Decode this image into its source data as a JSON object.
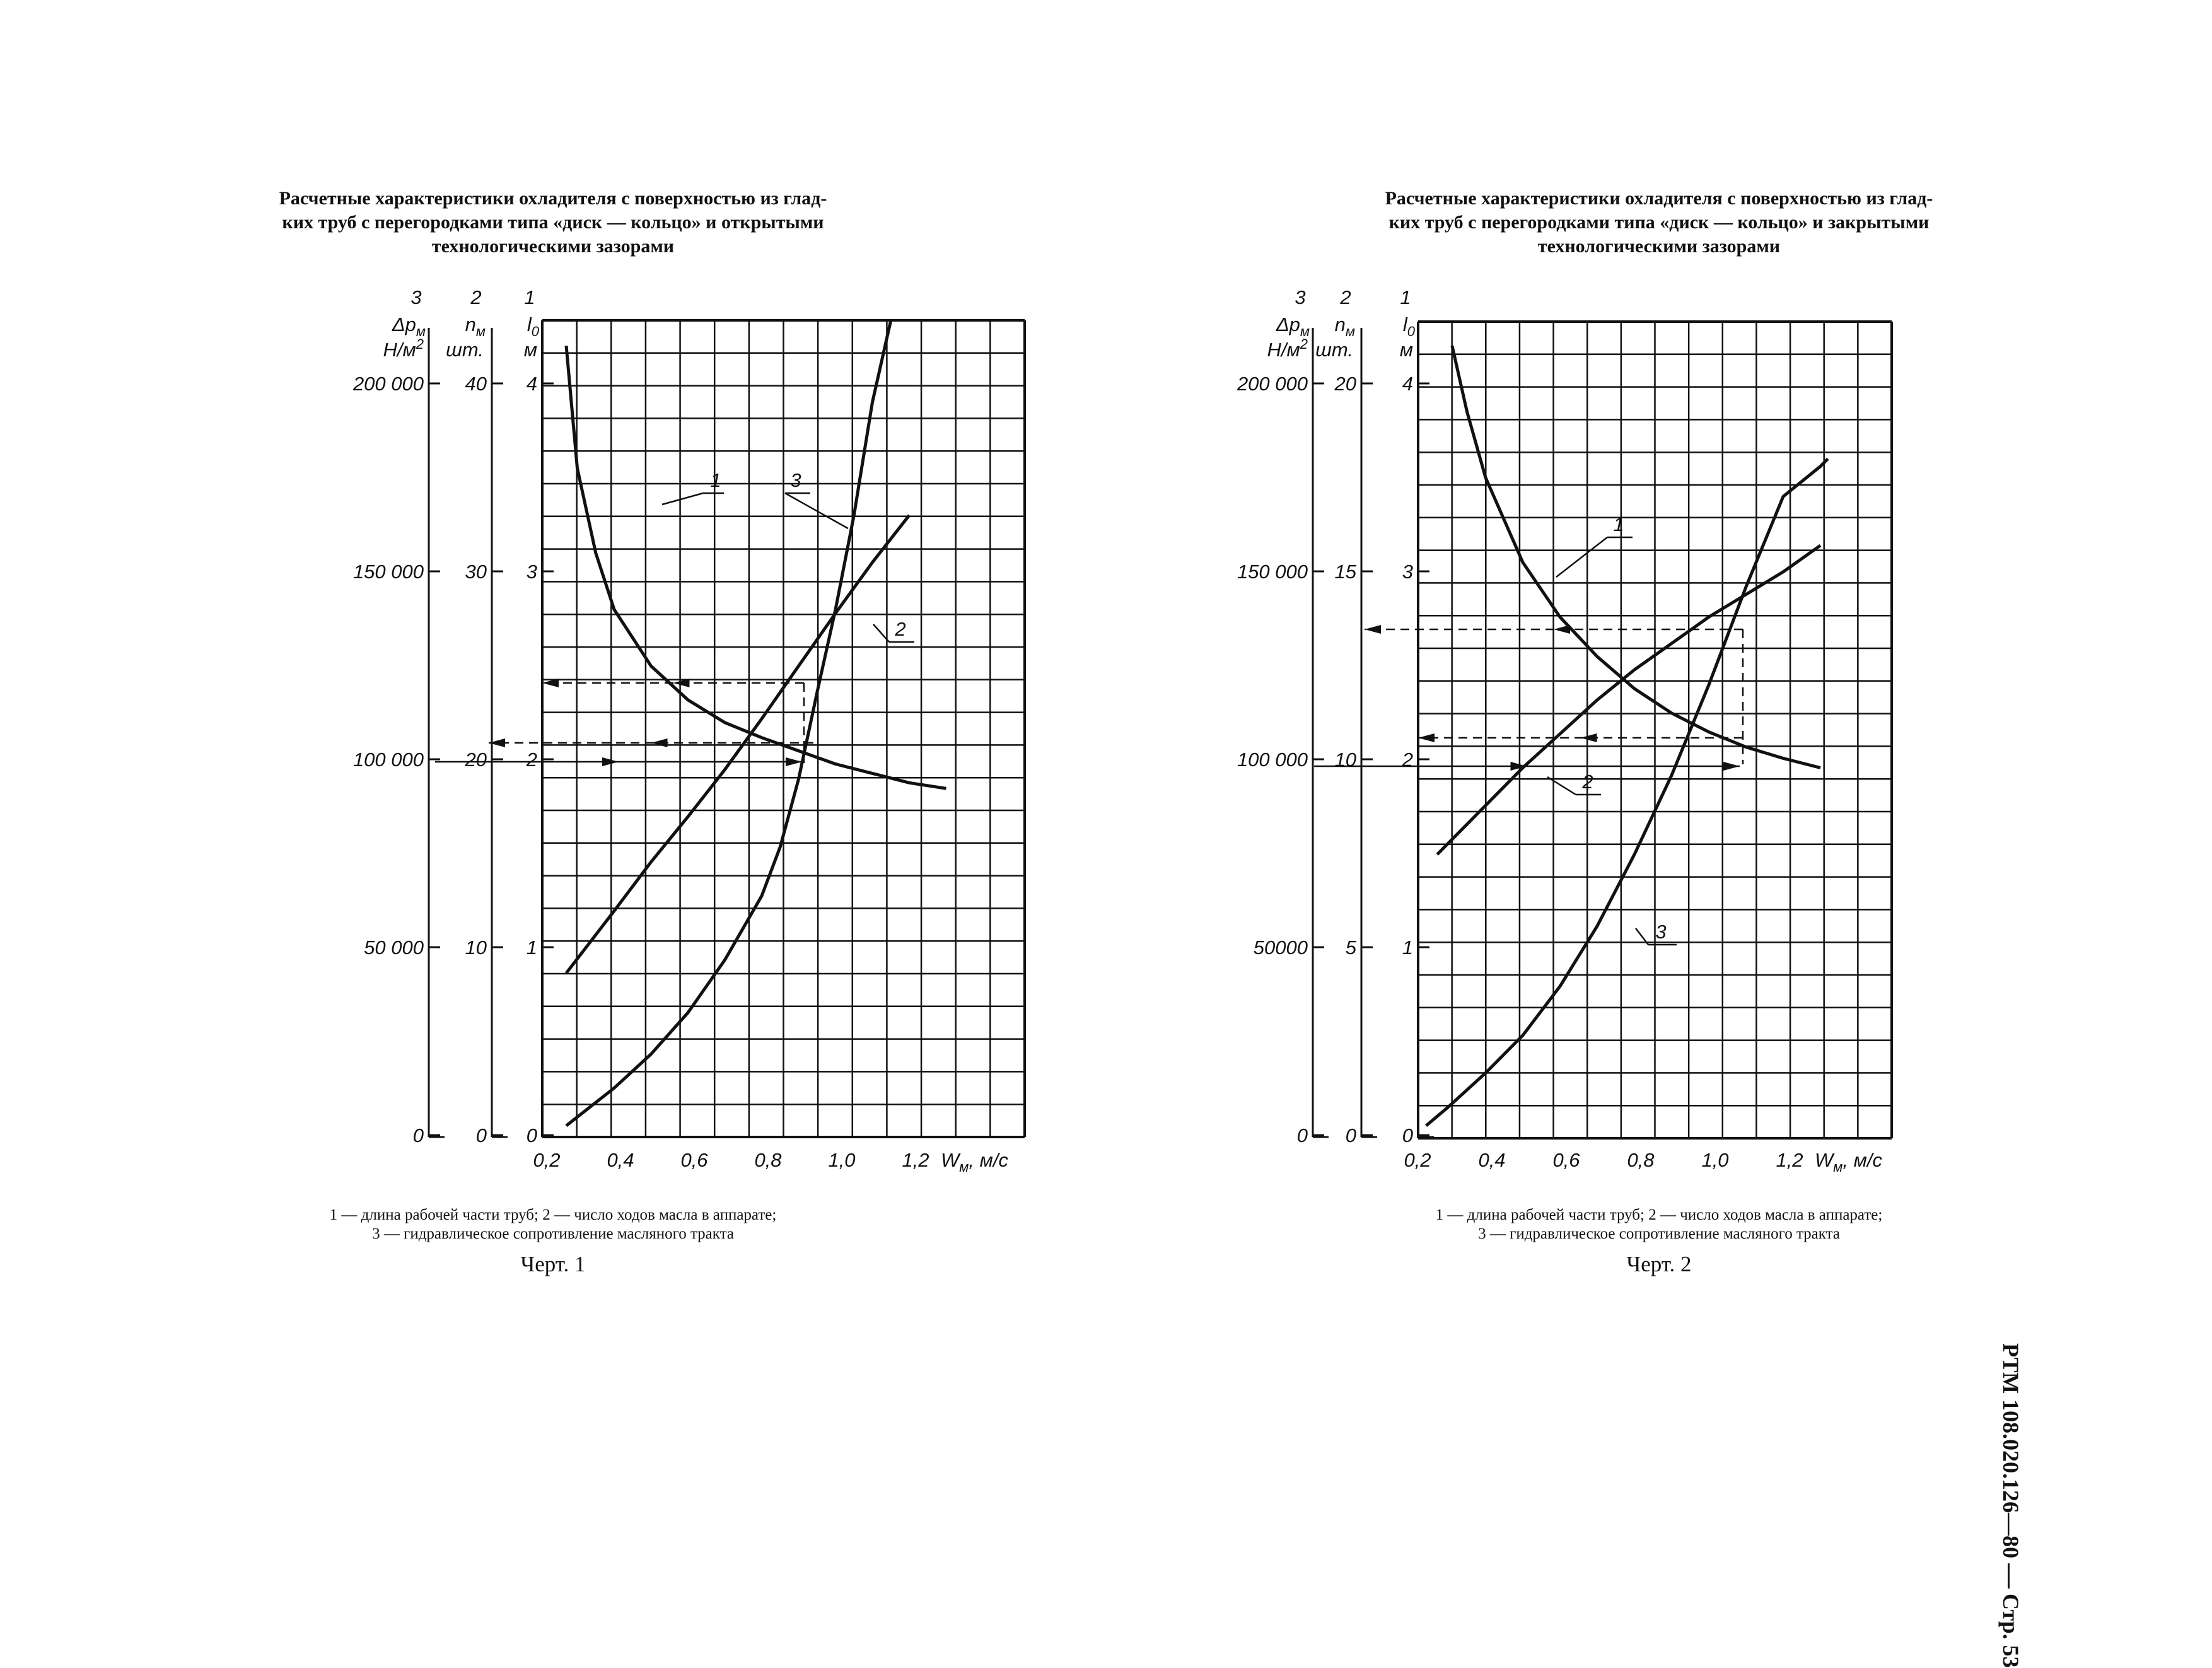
{
  "charts": [
    {
      "title_lines": [
        "Расчетные характеристики охладителя с поверхностью из глад-",
        "ких труб с перегородками типа «диск — кольцо» и открытыми",
        "технологическими зазорами"
      ],
      "axis_headers": {
        "dp_num": "3",
        "dp_l1": "Δp",
        "dp_sub": "м",
        "dp_l2": "Н/м",
        "dp_sup": "2",
        "n_num": "2",
        "n_l1": "n",
        "n_sub": "м",
        "n_l2": "шт.",
        "l_num": "1",
        "l_l1": "l",
        "l_sub": "0",
        "l_l2": "м"
      },
      "dp_ticks": [
        "200 000",
        "150 000",
        "100 000",
        "50 000",
        "0"
      ],
      "n_ticks": [
        "40",
        "30",
        "20",
        "10",
        "0"
      ],
      "l_ticks": [
        "4",
        "3",
        "2",
        "1",
        "0"
      ],
      "x_ticks": [
        "0,2",
        "0,4",
        "0,6",
        "0,8",
        "1,0",
        "1,2"
      ],
      "x_label": "W",
      "x_label_sub": "м",
      "x_label_unit": ", м/с",
      "curve_labels": [
        "1",
        "3",
        "2"
      ],
      "legend_lines": [
        "1 — длина рабочей части труб; 2 — число ходов масла в аппарате;",
        "3 — гидравлическое сопротивление масляного тракта"
      ],
      "caption": "Черт. 1"
    },
    {
      "title_lines": [
        "Расчетные характеристики охладителя с поверхностью из глад-",
        "ких труб с перегородками типа «диск — кольцо» и закрытыми",
        "технологическими зазорами"
      ],
      "axis_headers": {
        "dp_num": "3",
        "dp_l1": "Δp",
        "dp_sub": "м",
        "dp_l2": "Н/м",
        "dp_sup": "2",
        "n_num": "2",
        "n_l1": "n",
        "n_sub": "м",
        "n_l2": "шт.",
        "l_num": "1",
        "l_l1": "l",
        "l_sub": "0",
        "l_l2": "м"
      },
      "dp_ticks": [
        "200 000",
        "150 000",
        "100 000",
        "50000",
        "0"
      ],
      "n_ticks": [
        "20",
        "15",
        "10",
        "5",
        "0"
      ],
      "l_ticks": [
        "4",
        "3",
        "2",
        "1",
        "0"
      ],
      "x_ticks": [
        "0,2",
        "0,4",
        "0,6",
        "0,8",
        "1,0",
        "1,2"
      ],
      "x_label": "W",
      "x_label_sub": "м",
      "x_label_unit": ", м/с",
      "curve_labels": [
        "1",
        "2",
        "3"
      ],
      "legend_lines": [
        "1 — длина рабочей части труб; 2 — число ходов масла в аппарате;",
        "3 — гидравлическое сопротивление масляного тракта"
      ],
      "caption": "Черт. 2"
    }
  ],
  "chart_data": [
    {
      "type": "line",
      "x_label": "Wм, м/с",
      "xlim": [
        0.2,
        1.3
      ],
      "grid": true,
      "y_axes": [
        {
          "name": "Δpм, Н/м²",
          "range": [
            0,
            200000
          ]
        },
        {
          "name": "nм, шт.",
          "range": [
            0,
            40
          ]
        },
        {
          "name": "l0, м",
          "range": [
            0,
            4
          ]
        }
      ],
      "series": [
        {
          "name": "1",
          "axis": "l0, м",
          "x": [
            0.27,
            0.3,
            0.35,
            0.4,
            0.5,
            0.6,
            0.7,
            0.8,
            0.9,
            1.0,
            1.1,
            1.2,
            1.3
          ],
          "y": [
            4.2,
            3.55,
            3.1,
            2.8,
            2.5,
            2.32,
            2.2,
            2.12,
            2.05,
            1.98,
            1.93,
            1.88,
            1.85
          ]
        },
        {
          "name": "2",
          "axis": "nм, шт.",
          "x": [
            0.27,
            0.4,
            0.5,
            0.6,
            0.7,
            0.8,
            0.9,
            1.0,
            1.1,
            1.2
          ],
          "y": [
            8.7,
            12.0,
            14.6,
            17.0,
            19.5,
            22.2,
            25.0,
            27.8,
            30.5,
            33.0
          ]
        },
        {
          "name": "3",
          "axis": "Δpм, Н/м²",
          "x": [
            0.27,
            0.4,
            0.5,
            0.6,
            0.7,
            0.8,
            0.85,
            0.9,
            0.95,
            1.0,
            1.05,
            1.1,
            1.15
          ],
          "y": [
            3000,
            13000,
            22000,
            33000,
            47000,
            64000,
            77000,
            95000,
            118000,
            140000,
            165000,
            195000,
            230000
          ]
        }
      ]
    },
    {
      "type": "line",
      "x_label": "Wм, м/с",
      "xlim": [
        0.2,
        1.32
      ],
      "grid": true,
      "y_axes": [
        {
          "name": "Δpм, Н/м²",
          "range": [
            0,
            200000
          ]
        },
        {
          "name": "nм, шт.",
          "range": [
            0,
            20
          ]
        },
        {
          "name": "l0, м",
          "range": [
            0,
            4
          ]
        }
      ],
      "series": [
        {
          "name": "1",
          "axis": "l0, м",
          "x": [
            0.31,
            0.35,
            0.4,
            0.5,
            0.6,
            0.7,
            0.8,
            0.9,
            1.0,
            1.1,
            1.2,
            1.3
          ],
          "y": [
            4.2,
            3.85,
            3.5,
            3.05,
            2.76,
            2.55,
            2.38,
            2.25,
            2.15,
            2.07,
            2.01,
            1.96
          ]
        },
        {
          "name": "2",
          "axis": "nм, шт.",
          "x": [
            0.27,
            0.4,
            0.5,
            0.6,
            0.7,
            0.8,
            0.9,
            1.0,
            1.1,
            1.2,
            1.3
          ],
          "y": [
            7.5,
            8.8,
            9.8,
            10.7,
            11.6,
            12.4,
            13.1,
            13.8,
            14.4,
            15.0,
            15.7
          ]
        },
        {
          "name": "3",
          "axis": "Δpм, Н/м²",
          "x": [
            0.24,
            0.3,
            0.4,
            0.5,
            0.6,
            0.7,
            0.8,
            0.9,
            1.0,
            1.1,
            1.2,
            1.3,
            1.32
          ],
          "y": [
            3000,
            8000,
            17000,
            27000,
            40000,
            56000,
            75000,
            96000,
            120000,
            146000,
            170000,
            178000,
            180000
          ]
        }
      ]
    }
  ],
  "page_stamp": {
    "doc": "РТМ 108.020.126—80",
    "page": "Стр. 53"
  }
}
